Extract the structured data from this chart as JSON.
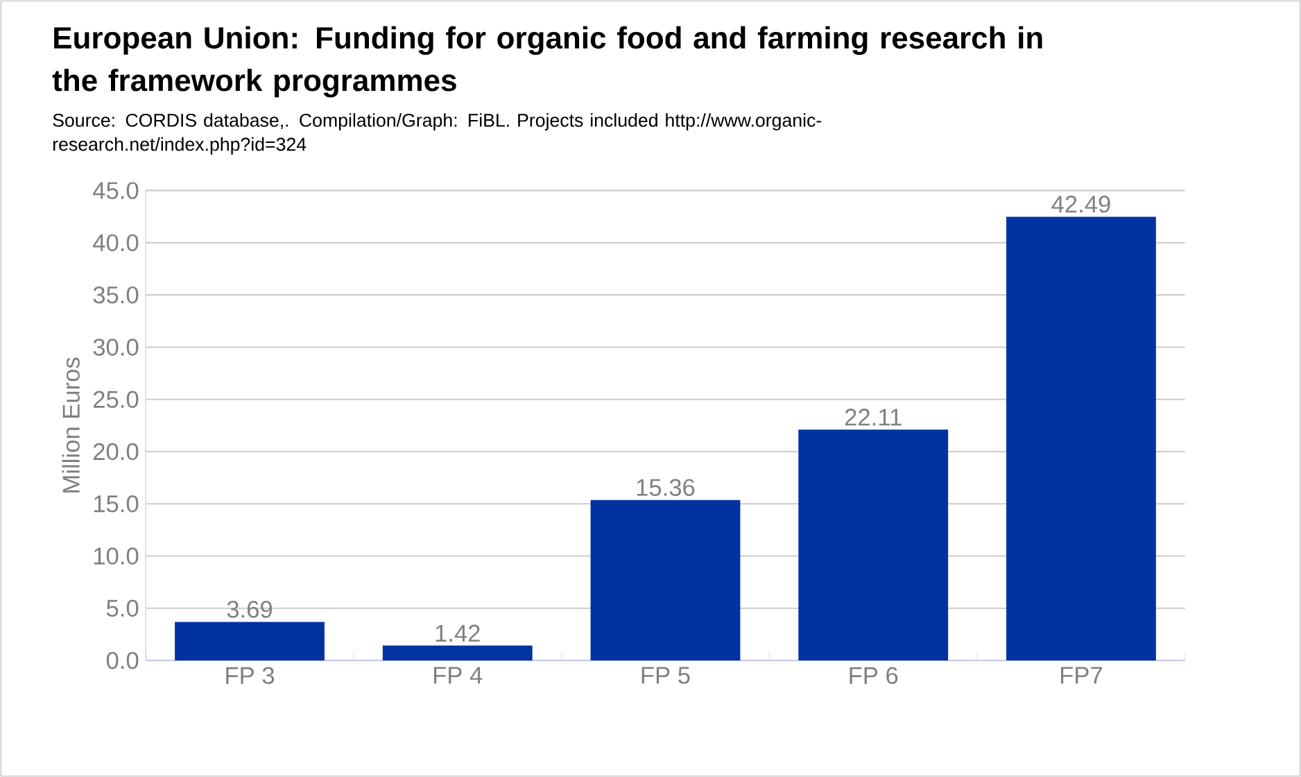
{
  "chart_data": {
    "type": "bar",
    "title": "European Union: Funding for organic food and farming research in the framework programmes",
    "annotations": [
      "Source: CORDIS database,. Compilation/Graph: FiBL. Projects included http://www.organic-research.net/index.php?id=324"
    ],
    "ylabel": "Million Euros",
    "categories": [
      "FP 3",
      "FP 4",
      "FP 5",
      "FP 6",
      "FP7"
    ],
    "values": [
      3.69,
      1.42,
      15.36,
      22.11,
      42.49
    ],
    "color": "#0033a0",
    "data_labels": true,
    "ylim": [
      0,
      45
    ],
    "yticks": [
      {
        "value": 0,
        "label": "0.0"
      },
      {
        "value": 5,
        "label": "5.0"
      },
      {
        "value": 10,
        "label": "10.0"
      },
      {
        "value": 15,
        "label": "15.0"
      },
      {
        "value": 20,
        "label": "20.0"
      },
      {
        "value": 25,
        "label": "25.0"
      },
      {
        "value": 30,
        "label": "30.0"
      },
      {
        "value": 35,
        "label": "35.0"
      },
      {
        "value": 40,
        "label": "40.0"
      },
      {
        "value": 45,
        "label": "45.0"
      }
    ],
    "grid": "y"
  }
}
